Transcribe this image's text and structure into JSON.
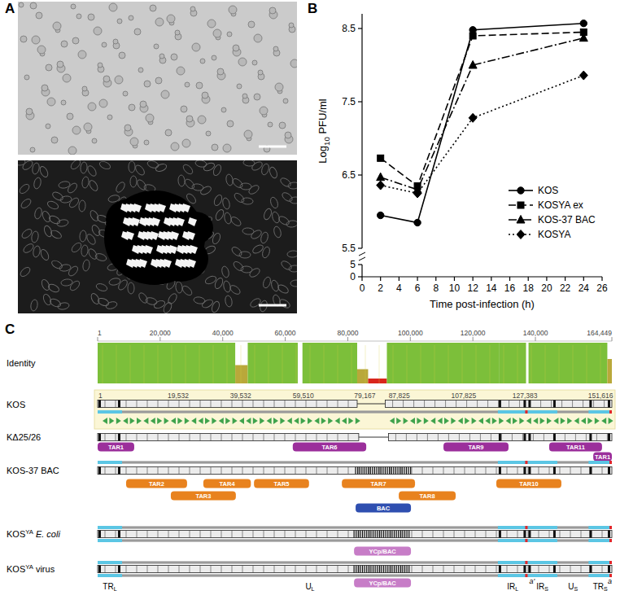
{
  "panel_labels": [
    "A",
    "B",
    "C"
  ],
  "chart_data": {
    "type": "line",
    "x_label": "Time post-infection (h)",
    "y_label": [
      "Log",
      "10",
      " PFU/ml"
    ],
    "x": [
      2,
      6,
      12,
      24
    ],
    "xlim": [
      0,
      26
    ],
    "xticks": [
      0,
      2,
      4,
      6,
      8,
      10,
      12,
      14,
      16,
      18,
      20,
      22,
      24,
      26
    ],
    "ylim": [
      0,
      8.7
    ],
    "yticks": [
      0,
      5,
      5.5,
      6.5,
      7.5,
      8.5
    ],
    "legend": "lower right",
    "series": [
      {
        "name": "KOS",
        "color": "#000000",
        "marker": "circle",
        "line_style": "solid",
        "values": [
          5.95,
          5.85,
          8.48,
          8.57
        ]
      },
      {
        "name": "KOSYA ex",
        "color": "#000000",
        "marker": "square",
        "line_style": "dashed",
        "values": [
          6.73,
          6.35,
          8.4,
          8.45
        ]
      },
      {
        "name": "KOS-37 BAC",
        "color": "#000000",
        "marker": "triangle",
        "line_style": "dashdot",
        "values": [
          6.47,
          6.3,
          8.0,
          8.37
        ]
      },
      {
        "name": "KOSYA",
        "color": "#000000",
        "marker": "diamond",
        "line_style": "dotted",
        "values": [
          6.36,
          6.25,
          7.28,
          7.86
        ]
      }
    ]
  },
  "genome_map": {
    "xlim": [
      1,
      164449
    ],
    "scale_ticks": [
      {
        "value": 1,
        "label": "1"
      },
      {
        "value": 20000,
        "label": "20,000"
      },
      {
        "value": 40000,
        "label": "40,000"
      },
      {
        "value": 60000,
        "label": "60,000"
      },
      {
        "value": 80000,
        "label": "80,000"
      },
      {
        "value": 100000,
        "label": "100,000"
      },
      {
        "value": 120000,
        "label": "120,000"
      },
      {
        "value": 140000,
        "label": "140,000"
      },
      {
        "value": 164449,
        "label": "164,449"
      }
    ],
    "identity": {
      "label": "Identity",
      "segments": [
        [
          1,
          44000,
          100
        ],
        [
          44000,
          48000,
          45
        ],
        [
          48000,
          64000,
          100
        ],
        [
          65500,
          83000,
          100
        ],
        [
          83000,
          86500,
          35
        ],
        [
          86500,
          92500,
          12
        ],
        [
          92500,
          128500,
          100
        ],
        [
          128500,
          137000,
          100
        ],
        [
          137800,
          163000,
          100
        ],
        [
          163000,
          164449,
          60
        ]
      ]
    },
    "rows": [
      {
        "label": [
          {
            "text": "KOS"
          }
        ],
        "gap": [
          83000,
          92000
        ],
        "ticks": [
          {
            "value": 1,
            "label": "1"
          },
          {
            "value": 22100,
            "label": "19,532"
          },
          {
            "value": 42100,
            "label": "39,532"
          },
          {
            "value": 62100,
            "label": "59,510"
          },
          {
            "value": 81800,
            "label": "79,167"
          },
          {
            "value": 92800,
            "label": "87,825"
          },
          {
            "value": 112800,
            "label": "107,825"
          },
          {
            "value": 132400,
            "label": "127,383"
          },
          {
            "value": 156600,
            "label": "151,616"
          }
        ]
      },
      {
        "label": [
          {
            "text": "KΔ25/26"
          }
        ],
        "gap": [
          83500,
          93000
        ],
        "features": [
          {
            "label": "TAR1",
            "start": 1,
            "end": 11700,
            "color": "#9b2f9b"
          },
          {
            "label": "TAR6",
            "start": 62400,
            "end": 85900,
            "color": "#9b2f9b"
          },
          {
            "label": "TAR9",
            "start": 110600,
            "end": 131400,
            "color": "#9b2f9b"
          },
          {
            "label": "TAR11",
            "start": 144400,
            "end": 161300,
            "color": "#9b2f9b"
          },
          {
            "label": "TAR1",
            "start": 158500,
            "end": 164449,
            "color": "#9b2f9b"
          }
        ]
      },
      {
        "label": [
          {
            "text": "KOS-37 BAC"
          }
        ],
        "features": [
          {
            "label": "TAR2",
            "start": 9100,
            "end": 28600,
            "color": "#e8821e"
          },
          {
            "label": "TAR3",
            "start": 23400,
            "end": 44200,
            "color": "#e8821e"
          },
          {
            "label": "TAR4",
            "start": 33800,
            "end": 49000,
            "color": "#e8821e"
          },
          {
            "label": "TAR5",
            "start": 50000,
            "end": 67600,
            "color": "#e8821e"
          },
          {
            "label": "TAR7",
            "start": 78100,
            "end": 101500,
            "color": "#e8821e"
          },
          {
            "label": "TAR8",
            "start": 96300,
            "end": 114500,
            "color": "#e8821e"
          },
          {
            "label": "TAR10",
            "start": 127500,
            "end": 148300,
            "color": "#e8821e"
          },
          {
            "label": "BAC",
            "start": 82500,
            "end": 100200,
            "color": "#2f4fb0"
          }
        ]
      },
      {
        "label": [
          {
            "text": "KOS"
          },
          {
            "text": "YA",
            "style": "sup"
          },
          {
            "text": "E. coli",
            "style": "italic"
          }
        ],
        "features": [
          {
            "label": "YCp/BAC",
            "start": 82000,
            "end": 100200,
            "color": "#c77dc7"
          }
        ]
      },
      {
        "label": [
          {
            "text": "KOS"
          },
          {
            "text": "YA",
            "style": "sup"
          },
          {
            "text": "virus",
            "style": "italic-off"
          }
        ],
        "features": [
          {
            "label": "YCp/BAC",
            "start": 82000,
            "end": 100200,
            "color": "#c77dc7"
          }
        ]
      }
    ],
    "regions": [
      {
        "main": "TR",
        "sub": "L",
        "start": 1,
        "end": 7800,
        "repeat": true
      },
      {
        "main": "U",
        "sub": "L",
        "start": 7800,
        "end": 128000,
        "repeat": false
      },
      {
        "main": "IR",
        "sub": "L",
        "start": 128000,
        "end": 137500,
        "repeat": true
      },
      {
        "main": "IR",
        "sub": "S",
        "start": 137500,
        "end": 147000,
        "repeat": true
      },
      {
        "main": "U",
        "sub": "S",
        "start": 147000,
        "end": 157000,
        "repeat": false
      },
      {
        "main": "TR",
        "sub": "S",
        "start": 157000,
        "end": 164449,
        "repeat": true
      }
    ],
    "a_sequences": [
      {
        "label": "a'",
        "position": 137500
      },
      {
        "label": "a",
        "position": 164449
      }
    ]
  }
}
